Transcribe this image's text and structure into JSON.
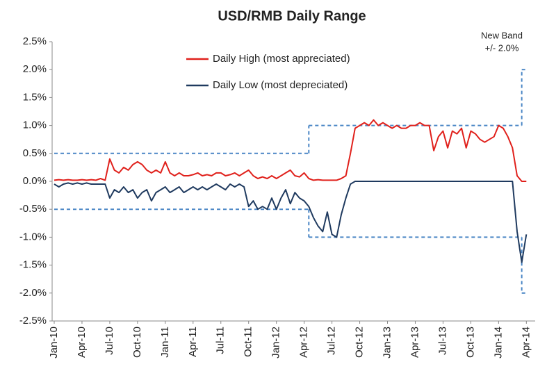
{
  "chart_data": {
    "type": "line",
    "title": "USD/RMB Daily Range",
    "categories": [
      "Jan-10",
      null,
      null,
      null,
      null,
      null,
      "Apr-10",
      null,
      null,
      null,
      null,
      null,
      "Jul-10",
      null,
      null,
      null,
      null,
      null,
      "Oct-10",
      null,
      null,
      null,
      null,
      null,
      "Jan-11",
      null,
      null,
      null,
      null,
      null,
      "Apr-11",
      null,
      null,
      null,
      null,
      null,
      "Jul-11",
      null,
      null,
      null,
      null,
      null,
      "Oct-11",
      null,
      null,
      null,
      null,
      null,
      "Jan-12",
      null,
      null,
      null,
      null,
      null,
      "Apr-12",
      null,
      null,
      null,
      null,
      null,
      "Jul-12",
      null,
      null,
      null,
      null,
      null,
      "Oct-12",
      null,
      null,
      null,
      null,
      null,
      "Jan-13",
      null,
      null,
      null,
      null,
      null,
      "Apr-13",
      null,
      null,
      null,
      null,
      null,
      "Jul-13",
      null,
      null,
      null,
      null,
      null,
      "Oct-13",
      null,
      null,
      null,
      null,
      null,
      "Jan-14",
      null,
      null,
      null,
      null,
      null,
      "Apr-14"
    ],
    "series": [
      {
        "name": "Daily High (most appreciated)",
        "color": "#e0201b",
        "values": [
          0.02,
          0.03,
          0.02,
          0.03,
          0.02,
          0.02,
          0.03,
          0.02,
          0.03,
          0.02,
          0.05,
          0.02,
          0.4,
          0.2,
          0.15,
          0.25,
          0.2,
          0.3,
          0.35,
          0.3,
          0.2,
          0.15,
          0.2,
          0.15,
          0.35,
          0.15,
          0.1,
          0.15,
          0.1,
          0.1,
          0.12,
          0.15,
          0.1,
          0.12,
          0.1,
          0.15,
          0.15,
          0.1,
          0.12,
          0.15,
          0.1,
          0.15,
          0.2,
          0.1,
          0.05,
          0.08,
          0.05,
          0.1,
          0.05,
          0.1,
          0.15,
          0.2,
          0.1,
          0.08,
          0.15,
          0.05,
          0.02,
          0.03,
          0.02,
          0.02,
          0.02,
          0.02,
          0.05,
          0.1,
          0.5,
          0.95,
          1.0,
          1.05,
          1.0,
          1.1,
          1.0,
          1.05,
          1.0,
          0.95,
          1.0,
          0.95,
          0.95,
          1.0,
          1.0,
          1.05,
          1.0,
          1.0,
          0.55,
          0.8,
          0.9,
          0.6,
          0.9,
          0.85,
          0.95,
          0.6,
          0.9,
          0.85,
          0.75,
          0.7,
          0.75,
          0.8,
          1.0,
          0.95,
          0.8,
          0.6,
          0.1,
          0.0,
          0.0
        ]
      },
      {
        "name": "Daily Low (most depreciated)",
        "color": "#1f3a5f",
        "values": [
          -0.05,
          -0.1,
          -0.05,
          -0.03,
          -0.05,
          -0.03,
          -0.05,
          -0.03,
          -0.05,
          -0.05,
          -0.05,
          -0.05,
          -0.3,
          -0.15,
          -0.2,
          -0.1,
          -0.2,
          -0.15,
          -0.3,
          -0.2,
          -0.15,
          -0.35,
          -0.2,
          -0.15,
          -0.1,
          -0.2,
          -0.15,
          -0.1,
          -0.2,
          -0.15,
          -0.1,
          -0.15,
          -0.1,
          -0.15,
          -0.1,
          -0.05,
          -0.1,
          -0.15,
          -0.05,
          -0.1,
          -0.05,
          -0.1,
          -0.45,
          -0.35,
          -0.5,
          -0.45,
          -0.5,
          -0.3,
          -0.5,
          -0.3,
          -0.15,
          -0.4,
          -0.2,
          -0.3,
          -0.35,
          -0.45,
          -0.65,
          -0.8,
          -0.9,
          -0.55,
          -0.95,
          -1.0,
          -0.6,
          -0.3,
          -0.05,
          0,
          0,
          0,
          0,
          0,
          0,
          0,
          0,
          0,
          0,
          0,
          0,
          0,
          0,
          0,
          0,
          0,
          0,
          0,
          0,
          0,
          0,
          0,
          0,
          0,
          0,
          0,
          0,
          0,
          0,
          0,
          0,
          0,
          0,
          0,
          -0.9,
          -1.45,
          -0.95
        ]
      },
      {
        "color": "#4a86c5",
        "style": "dashed",
        "step": true,
        "values": [
          0.5,
          0.5,
          0.5,
          0.5,
          0.5,
          0.5,
          0.5,
          0.5,
          0.5,
          0.5,
          0.5,
          0.5,
          0.5,
          0.5,
          0.5,
          0.5,
          0.5,
          0.5,
          0.5,
          0.5,
          0.5,
          0.5,
          0.5,
          0.5,
          0.5,
          0.5,
          0.5,
          0.5,
          0.5,
          0.5,
          0.5,
          0.5,
          0.5,
          0.5,
          0.5,
          0.5,
          0.5,
          0.5,
          0.5,
          0.5,
          0.5,
          0.5,
          0.5,
          0.5,
          0.5,
          0.5,
          0.5,
          0.5,
          0.5,
          0.5,
          0.5,
          0.5,
          0.5,
          0.5,
          0.5,
          1.0,
          1.0,
          1.0,
          1.0,
          1.0,
          1.0,
          1.0,
          1.0,
          1.0,
          1.0,
          1.0,
          1.0,
          1.0,
          1.0,
          1.0,
          1.0,
          1.0,
          1.0,
          1.0,
          1.0,
          1.0,
          1.0,
          1.0,
          1.0,
          1.0,
          1.0,
          1.0,
          1.0,
          1.0,
          1.0,
          1.0,
          1.0,
          1.0,
          1.0,
          1.0,
          1.0,
          1.0,
          1.0,
          1.0,
          1.0,
          1.0,
          1.0,
          1.0,
          1.0,
          1.0,
          1.0,
          2.0,
          2.0
        ]
      },
      {
        "color": "#4a86c5",
        "style": "dashed",
        "step": true,
        "values": [
          -0.5,
          -0.5,
          -0.5,
          -0.5,
          -0.5,
          -0.5,
          -0.5,
          -0.5,
          -0.5,
          -0.5,
          -0.5,
          -0.5,
          -0.5,
          -0.5,
          -0.5,
          -0.5,
          -0.5,
          -0.5,
          -0.5,
          -0.5,
          -0.5,
          -0.5,
          -0.5,
          -0.5,
          -0.5,
          -0.5,
          -0.5,
          -0.5,
          -0.5,
          -0.5,
          -0.5,
          -0.5,
          -0.5,
          -0.5,
          -0.5,
          -0.5,
          -0.5,
          -0.5,
          -0.5,
          -0.5,
          -0.5,
          -0.5,
          -0.5,
          -0.5,
          -0.5,
          -0.5,
          -0.5,
          -0.5,
          -0.5,
          -0.5,
          -0.5,
          -0.5,
          -0.5,
          -0.5,
          -0.5,
          -1.0,
          -1.0,
          -1.0,
          -1.0,
          -1.0,
          -1.0,
          -1.0,
          -1.0,
          -1.0,
          -1.0,
          -1.0,
          -1.0,
          -1.0,
          -1.0,
          -1.0,
          -1.0,
          -1.0,
          -1.0,
          -1.0,
          -1.0,
          -1.0,
          -1.0,
          -1.0,
          -1.0,
          -1.0,
          -1.0,
          -1.0,
          -1.0,
          -1.0,
          -1.0,
          -1.0,
          -1.0,
          -1.0,
          -1.0,
          -1.0,
          -1.0,
          -1.0,
          -1.0,
          -1.0,
          -1.0,
          -1.0,
          -1.0,
          -1.0,
          -1.0,
          -1.0,
          -1.0,
          -2.0,
          -2.0
        ]
      }
    ],
    "annotations": [
      "New Band",
      "+/- 2.0%"
    ],
    "ylim": [
      -2.5,
      2.5
    ],
    "yticks": [
      {
        "value": -2.5,
        "label": "-2.5%"
      },
      {
        "value": -2.0,
        "label": "-2.0%"
      },
      {
        "value": -1.5,
        "label": "-1.5%"
      },
      {
        "value": -1.0,
        "label": "-1.0%"
      },
      {
        "value": -0.5,
        "label": "-0.5%"
      },
      {
        "value": 0.0,
        "label": "0.0%"
      },
      {
        "value": 0.5,
        "label": "0.5%"
      },
      {
        "value": 1.0,
        "label": "1.0%"
      },
      {
        "value": 1.5,
        "label": "1.5%"
      },
      {
        "value": 2.0,
        "label": "2.0%"
      },
      {
        "value": 2.5,
        "label": "2.5%"
      }
    ],
    "grid": false,
    "legend": "top"
  }
}
